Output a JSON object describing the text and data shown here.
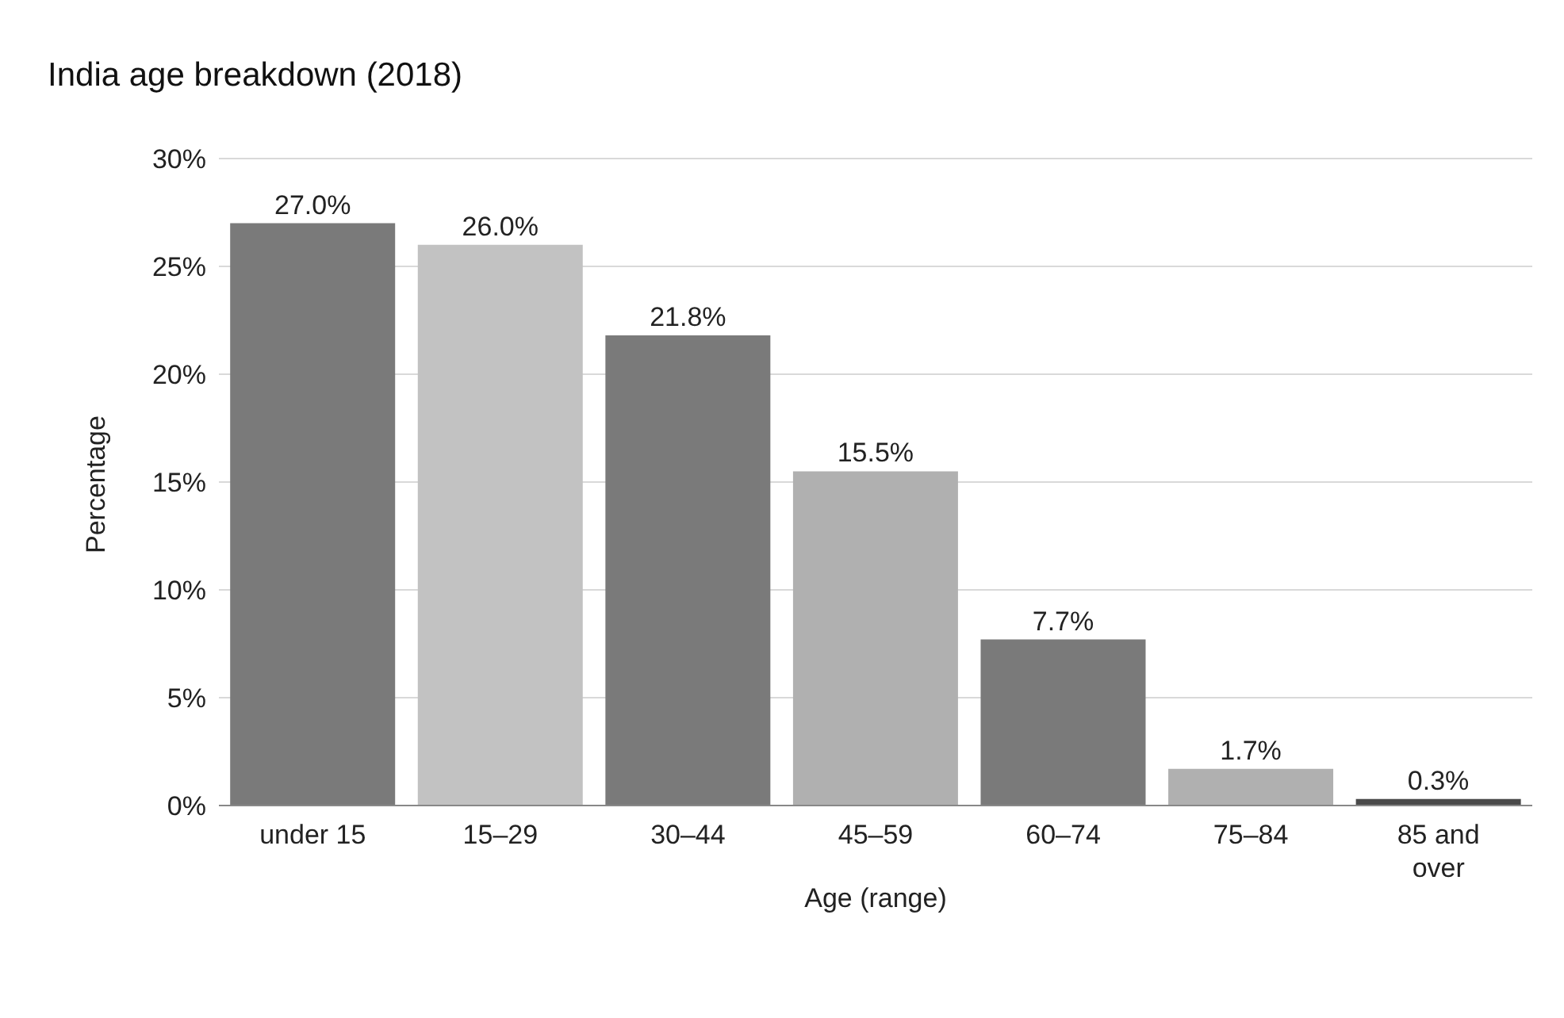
{
  "chart_data": {
    "type": "bar",
    "title": "India age breakdown (2018)",
    "xlabel": "Age (range)",
    "ylabel": "Percentage",
    "categories": [
      "under 15",
      "15–29",
      "30–44",
      "45–59",
      "60–74",
      "75–84",
      "85 and over"
    ],
    "values": [
      27.0,
      26.0,
      21.8,
      15.5,
      7.7,
      1.7,
      0.3
    ],
    "colors": [
      "#7a7a7a",
      "#c2c2c2",
      "#7a7a7a",
      "#b0b0b0",
      "#7a7a7a",
      "#b0b0b0",
      "#4a4a4a"
    ],
    "value_labels": [
      "27.0%",
      "26.0%",
      "21.8%",
      "15.5%",
      "7.7%",
      "1.7%",
      "0.3%"
    ],
    "ylim": [
      0,
      30
    ],
    "yticks": [
      {
        "value": 0,
        "label": "0%"
      },
      {
        "value": 5,
        "label": "5%"
      },
      {
        "value": 10,
        "label": "10%"
      },
      {
        "value": 15,
        "label": "15%"
      },
      {
        "value": 20,
        "label": "20%"
      },
      {
        "value": 25,
        "label": "25%"
      },
      {
        "value": 30,
        "label": "30%"
      }
    ],
    "grid": "y"
  }
}
